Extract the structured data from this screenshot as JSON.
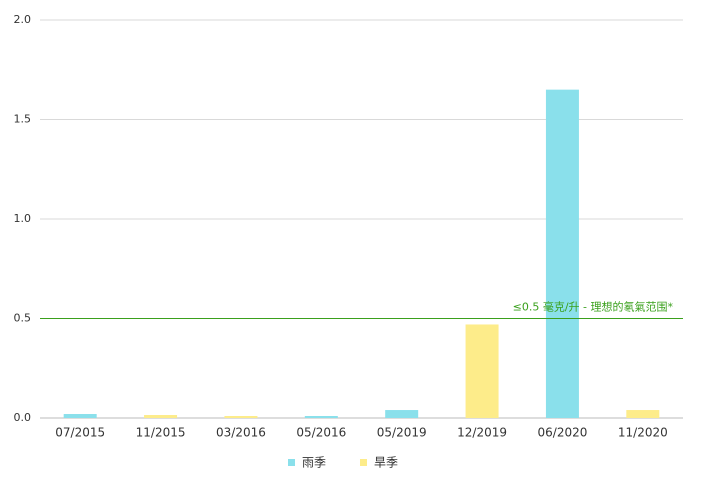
{
  "chart_data": {
    "type": "bar",
    "categories": [
      "07/2015",
      "11/2015",
      "03/2016",
      "05/2016",
      "05/2019",
      "12/2019",
      "06/2020",
      "11/2020"
    ],
    "series": [
      {
        "name": "雨季",
        "color": "#8ae0eb",
        "values": [
          0.02,
          null,
          null,
          0.01,
          0.04,
          null,
          1.65,
          null
        ]
      },
      {
        "name": "旱季",
        "color": "#fdec8a",
        "values": [
          null,
          0.015,
          0.01,
          null,
          null,
          0.47,
          null,
          0.04
        ]
      }
    ],
    "ylim": [
      0,
      2
    ],
    "yticks": [
      {
        "value": 0,
        "label": "0.0"
      },
      0.5,
      {
        "value": 1,
        "label": "1.0"
      },
      1.5,
      {
        "value": 2,
        "label": "2.0"
      }
    ],
    "grid": true,
    "reference_line": {
      "value": 0.5,
      "label": "≤0.5 毫克/升 - 理想的氡氣范围*",
      "color": "#3aa01c"
    },
    "legend": "bottom"
  }
}
